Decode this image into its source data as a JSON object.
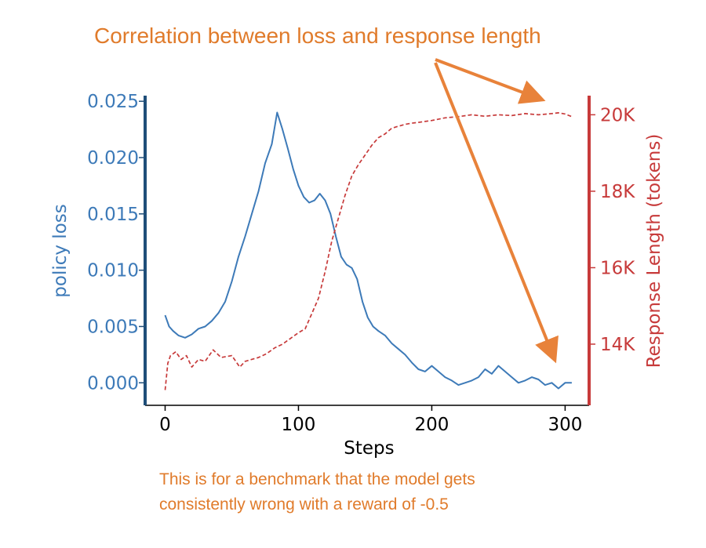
{
  "annotations": {
    "title": "Correlation between loss and response length",
    "note_lines": [
      "This is for a benchmark that the model gets",
      "consistently wrong with a reward of -0.5"
    ]
  },
  "colors": {
    "annotation": "#E07B2B",
    "arrow": "#E8823A",
    "loss": "#3D7AB8",
    "loss_axis": "#1F4E79",
    "length": "#C73A3A",
    "text": "#000000"
  },
  "chart_data": {
    "type": "line",
    "xlabel": "Steps",
    "ylabel_left": "policy loss",
    "ylabel_right": "Response Length (tokens)",
    "xlim": [
      -15,
      318
    ],
    "ylim_left": [
      -0.002,
      0.0255
    ],
    "ylim_right": [
      12400,
      20500
    ],
    "x_ticks": [
      {
        "value": 0,
        "label": "0"
      },
      {
        "value": 100,
        "label": "100"
      },
      {
        "value": 200,
        "label": "200"
      },
      {
        "value": 300,
        "label": "300"
      }
    ],
    "y_left_ticks": [
      {
        "value": 0.0,
        "label": "0.000"
      },
      {
        "value": 0.005,
        "label": "0.005"
      },
      {
        "value": 0.01,
        "label": "0.010"
      },
      {
        "value": 0.015,
        "label": "0.015"
      },
      {
        "value": 0.02,
        "label": "0.020"
      },
      {
        "value": 0.025,
        "label": "0.025"
      }
    ],
    "y_right_ticks": [
      {
        "value": 14000,
        "label": "14K"
      },
      {
        "value": 16000,
        "label": "16K"
      },
      {
        "value": 18000,
        "label": "18K"
      },
      {
        "value": 20000,
        "label": "20K"
      }
    ],
    "series": [
      {
        "name": "policy loss",
        "axis": "left",
        "style": "solid",
        "points": [
          [
            0,
            0.006
          ],
          [
            3,
            0.005
          ],
          [
            6,
            0.0046
          ],
          [
            10,
            0.0042
          ],
          [
            15,
            0.004
          ],
          [
            20,
            0.0043
          ],
          [
            25,
            0.0048
          ],
          [
            30,
            0.005
          ],
          [
            35,
            0.0055
          ],
          [
            40,
            0.0062
          ],
          [
            45,
            0.0072
          ],
          [
            50,
            0.009
          ],
          [
            55,
            0.0112
          ],
          [
            60,
            0.013
          ],
          [
            65,
            0.015
          ],
          [
            70,
            0.017
          ],
          [
            75,
            0.0195
          ],
          [
            80,
            0.0212
          ],
          [
            84,
            0.024
          ],
          [
            88,
            0.0225
          ],
          [
            92,
            0.0208
          ],
          [
            96,
            0.019
          ],
          [
            100,
            0.0175
          ],
          [
            104,
            0.0165
          ],
          [
            108,
            0.016
          ],
          [
            112,
            0.0162
          ],
          [
            116,
            0.0168
          ],
          [
            120,
            0.0162
          ],
          [
            124,
            0.015
          ],
          [
            128,
            0.013
          ],
          [
            132,
            0.0112
          ],
          [
            136,
            0.0105
          ],
          [
            140,
            0.0102
          ],
          [
            144,
            0.0092
          ],
          [
            148,
            0.0072
          ],
          [
            152,
            0.0058
          ],
          [
            156,
            0.005
          ],
          [
            160,
            0.0046
          ],
          [
            165,
            0.0042
          ],
          [
            170,
            0.0035
          ],
          [
            175,
            0.003
          ],
          [
            180,
            0.0025
          ],
          [
            185,
            0.0018
          ],
          [
            190,
            0.0012
          ],
          [
            195,
            0.001
          ],
          [
            200,
            0.0015
          ],
          [
            205,
            0.001
          ],
          [
            210,
            0.0005
          ],
          [
            215,
            0.0002
          ],
          [
            220,
            -0.0002
          ],
          [
            225,
            0.0
          ],
          [
            230,
            0.0002
          ],
          [
            235,
            0.0005
          ],
          [
            240,
            0.0012
          ],
          [
            245,
            0.0008
          ],
          [
            250,
            0.0015
          ],
          [
            255,
            0.001
          ],
          [
            260,
            0.0005
          ],
          [
            265,
            0.0
          ],
          [
            270,
            0.0002
          ],
          [
            275,
            0.0005
          ],
          [
            280,
            0.0003
          ],
          [
            285,
            -0.0002
          ],
          [
            290,
            0.0
          ],
          [
            295,
            -0.0005
          ],
          [
            300,
            0.0
          ],
          [
            305,
            0.0
          ]
        ]
      },
      {
        "name": "response length",
        "axis": "right",
        "style": "dashed",
        "points": [
          [
            0,
            12800
          ],
          [
            2,
            13500
          ],
          [
            4,
            13700
          ],
          [
            8,
            13800
          ],
          [
            12,
            13600
          ],
          [
            16,
            13700
          ],
          [
            20,
            13400
          ],
          [
            25,
            13600
          ],
          [
            30,
            13550
          ],
          [
            36,
            13850
          ],
          [
            42,
            13650
          ],
          [
            50,
            13700
          ],
          [
            56,
            13400
          ],
          [
            60,
            13550
          ],
          [
            70,
            13650
          ],
          [
            76,
            13750
          ],
          [
            82,
            13900
          ],
          [
            88,
            14000
          ],
          [
            94,
            14150
          ],
          [
            100,
            14300
          ],
          [
            105,
            14400
          ],
          [
            110,
            14800
          ],
          [
            115,
            15200
          ],
          [
            120,
            15900
          ],
          [
            125,
            16700
          ],
          [
            130,
            17300
          ],
          [
            135,
            17900
          ],
          [
            140,
            18400
          ],
          [
            145,
            18700
          ],
          [
            150,
            18950
          ],
          [
            155,
            19200
          ],
          [
            160,
            19400
          ],
          [
            165,
            19500
          ],
          [
            170,
            19650
          ],
          [
            175,
            19700
          ],
          [
            180,
            19750
          ],
          [
            185,
            19780
          ],
          [
            190,
            19800
          ],
          [
            200,
            19850
          ],
          [
            210,
            19920
          ],
          [
            220,
            19950
          ],
          [
            230,
            20000
          ],
          [
            240,
            19960
          ],
          [
            250,
            20000
          ],
          [
            260,
            19980
          ],
          [
            270,
            20030
          ],
          [
            280,
            20000
          ],
          [
            290,
            20030
          ],
          [
            295,
            20050
          ],
          [
            300,
            20020
          ],
          [
            305,
            19950
          ]
        ]
      }
    ]
  }
}
